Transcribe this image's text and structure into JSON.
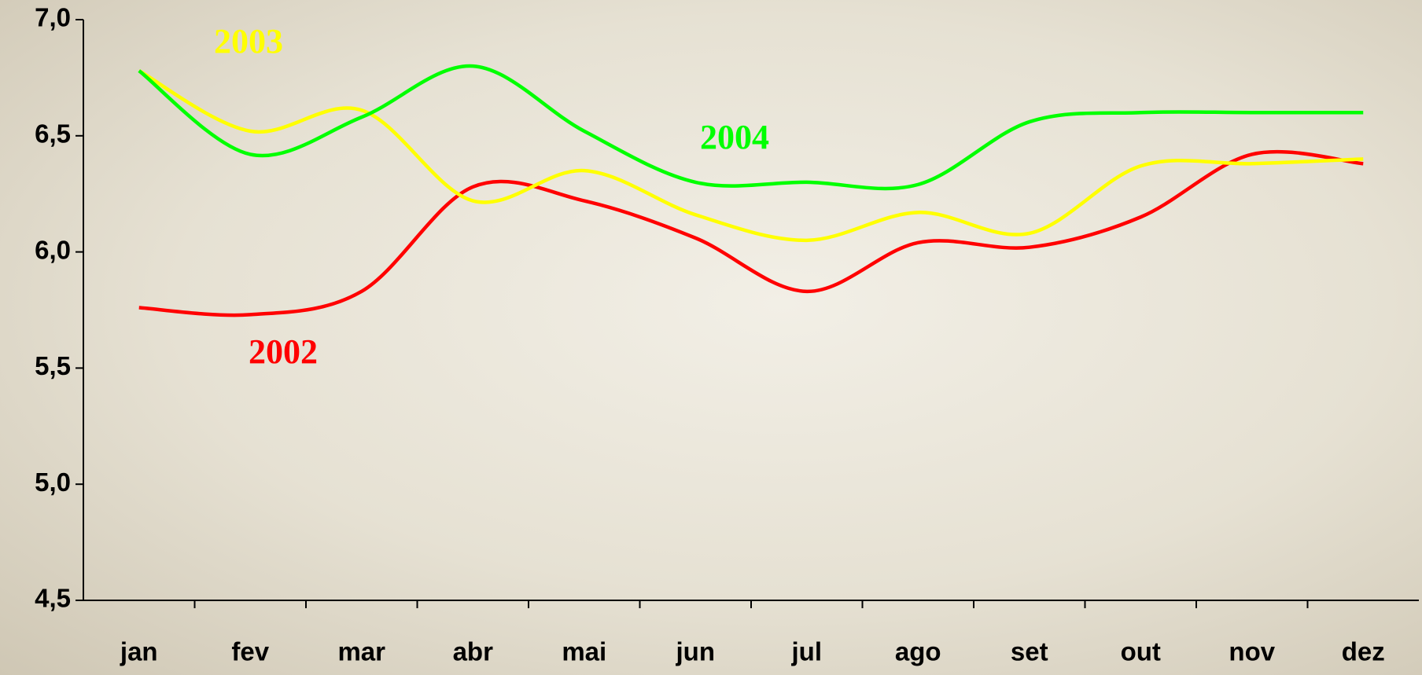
{
  "chart_data": {
    "type": "line",
    "categories": [
      "jan",
      "fev",
      "mar",
      "abr",
      "mai",
      "jun",
      "jul",
      "ago",
      "set",
      "out",
      "nov",
      "dez"
    ],
    "series": [
      {
        "name": "2002",
        "color": "#ff0000",
        "values": [
          5.76,
          5.73,
          5.83,
          6.28,
          6.22,
          6.06,
          5.83,
          6.04,
          6.02,
          6.15,
          6.42,
          6.38
        ]
      },
      {
        "name": "2003",
        "color": "#ffff00",
        "values": [
          6.78,
          6.52,
          6.61,
          6.22,
          6.35,
          6.16,
          6.05,
          6.17,
          6.08,
          6.37,
          6.38,
          6.4
        ]
      },
      {
        "name": "2004",
        "color": "#00ff00",
        "values": [
          6.78,
          6.42,
          6.58,
          6.8,
          6.52,
          6.3,
          6.3,
          6.29,
          6.56,
          6.6,
          6.6,
          6.6
        ]
      }
    ],
    "ylim": [
      4.5,
      7.0
    ],
    "yticks": [
      {
        "value": 4.5,
        "label": "4,5"
      },
      {
        "value": 5.0,
        "label": "5,0"
      },
      {
        "value": 5.5,
        "label": "5,5"
      },
      {
        "value": 6.0,
        "label": "6,0"
      },
      {
        "value": 6.5,
        "label": "6,5"
      },
      {
        "value": 7.0,
        "label": "7,0"
      }
    ]
  }
}
